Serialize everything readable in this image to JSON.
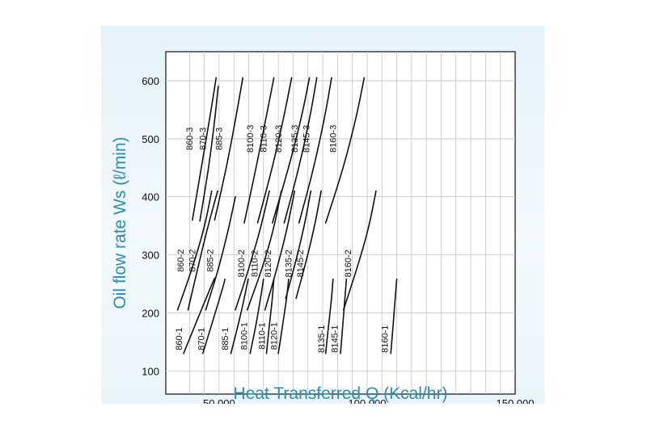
{
  "chart_data": {
    "type": "line",
    "xlabel": "Heat Transferred Q (Kcal/hr)",
    "ylabel": "Oil flow rate Ws (ℓ/min)",
    "xlim": [
      32000,
      150000
    ],
    "ylim": [
      60,
      650
    ],
    "x_ticks": [
      {
        "value": 50000,
        "label": "50,000"
      },
      {
        "value": 100000,
        "label": "100,000"
      },
      {
        "value": 150000,
        "label": "150,000"
      }
    ],
    "y_ticks": [
      100,
      200,
      300,
      400,
      500,
      600
    ],
    "x_gridlines": [
      40000,
      45000,
      50000,
      55000,
      60000,
      65000,
      70000,
      75000,
      80000,
      85000,
      90000,
      95000,
      100000,
      105000,
      110000,
      115000,
      120000,
      125000,
      130000,
      135000,
      140000,
      145000
    ],
    "series": [
      {
        "name": "860-3",
        "points": [
          [
            41000,
            360
          ],
          [
            44000,
            450
          ],
          [
            47000,
            540
          ],
          [
            49000,
            605
          ]
        ]
      },
      {
        "name": "870-3",
        "points": [
          [
            43500,
            358
          ],
          [
            46500,
            450
          ],
          [
            48500,
            530
          ],
          [
            49700,
            590
          ]
        ]
      },
      {
        "name": "885-3",
        "points": [
          [
            48500,
            360
          ],
          [
            52500,
            450
          ],
          [
            55800,
            540
          ],
          [
            58000,
            605
          ]
        ]
      },
      {
        "name": "8100-3",
        "points": [
          [
            58500,
            355
          ],
          [
            62500,
            450
          ],
          [
            66000,
            540
          ],
          [
            68500,
            605
          ]
        ]
      },
      {
        "name": "8110-3",
        "points": [
          [
            63000,
            355
          ],
          [
            68000,
            450
          ],
          [
            72000,
            540
          ],
          [
            74500,
            605
          ]
        ]
      },
      {
        "name": "8120-3",
        "points": [
          [
            68000,
            355
          ],
          [
            73500,
            450
          ],
          [
            78000,
            540
          ],
          [
            80500,
            605
          ]
        ]
      },
      {
        "name": "8135-3",
        "points": [
          [
            72000,
            355
          ],
          [
            77000,
            450
          ],
          [
            80800,
            540
          ],
          [
            83000,
            605
          ]
        ]
      },
      {
        "name": "8145-3",
        "points": [
          [
            77000,
            355
          ],
          [
            82000,
            450
          ],
          [
            85800,
            540
          ],
          [
            88000,
            605
          ]
        ]
      },
      {
        "name": "8160-3",
        "points": [
          [
            86000,
            355
          ],
          [
            92000,
            450
          ],
          [
            96500,
            540
          ],
          [
            99000,
            605
          ]
        ]
      },
      {
        "name": "860-2",
        "points": [
          [
            36000,
            205
          ],
          [
            40500,
            270
          ],
          [
            45000,
            345
          ],
          [
            47500,
            410
          ]
        ]
      },
      {
        "name": "870-2",
        "points": [
          [
            39500,
            205
          ],
          [
            42500,
            270
          ],
          [
            46000,
            345
          ],
          [
            49500,
            410
          ]
        ]
      },
      {
        "name": "885-2",
        "points": [
          [
            45500,
            205
          ],
          [
            49500,
            270
          ],
          [
            53000,
            340
          ],
          [
            55500,
            400
          ]
        ]
      },
      {
        "name": "8100-2",
        "points": [
          [
            55500,
            205
          ],
          [
            60000,
            275
          ],
          [
            64000,
            345
          ],
          [
            67000,
            410
          ]
        ]
      },
      {
        "name": "8110-2",
        "points": [
          [
            59500,
            205
          ],
          [
            64500,
            275
          ],
          [
            68500,
            345
          ],
          [
            71000,
            410
          ]
        ]
      },
      {
        "name": "8120-2",
        "points": [
          [
            65500,
            205
          ],
          [
            69500,
            275
          ],
          [
            73000,
            345
          ],
          [
            75500,
            410
          ]
        ]
      },
      {
        "name": "8135-2",
        "points": [
          [
            72500,
            225
          ],
          [
            76000,
            290
          ],
          [
            79000,
            355
          ],
          [
            81000,
            410
          ]
        ]
      },
      {
        "name": "8145-2",
        "points": [
          [
            76000,
            225
          ],
          [
            79500,
            290
          ],
          [
            82500,
            355
          ],
          [
            84500,
            410
          ]
        ]
      },
      {
        "name": "8160-2",
        "points": [
          [
            92000,
            205
          ],
          [
            96500,
            275
          ],
          [
            100500,
            345
          ],
          [
            103000,
            410
          ]
        ]
      },
      {
        "name": "860-1",
        "points": [
          [
            38000,
            130
          ],
          [
            42000,
            180
          ],
          [
            46000,
            230
          ],
          [
            48500,
            260
          ]
        ]
      },
      {
        "name": "870-1",
        "points": [
          [
            44500,
            130
          ],
          [
            47500,
            180
          ],
          [
            50500,
            230
          ],
          [
            52000,
            258
          ]
        ]
      },
      {
        "name": "885-1",
        "points": [
          [
            54000,
            130
          ],
          [
            56500,
            180
          ],
          [
            58500,
            225
          ],
          [
            59800,
            258
          ]
        ]
      },
      {
        "name": "8100-1",
        "points": [
          [
            60500,
            130
          ],
          [
            62500,
            180
          ],
          [
            64000,
            225
          ],
          [
            65000,
            258
          ]
        ]
      },
      {
        "name": "8110-1",
        "points": [
          [
            66000,
            130
          ],
          [
            67000,
            180
          ],
          [
            68000,
            225
          ],
          [
            68500,
            258
          ]
        ]
      },
      {
        "name": "8120-1",
        "points": [
          [
            70000,
            130
          ],
          [
            71500,
            180
          ],
          [
            72800,
            225
          ],
          [
            73500,
            258
          ]
        ]
      },
      {
        "name": "8135-1",
        "points": [
          [
            86000,
            130
          ],
          [
            87000,
            180
          ],
          [
            88000,
            225
          ],
          [
            88500,
            258
          ]
        ]
      },
      {
        "name": "8145-1",
        "points": [
          [
            91000,
            130
          ],
          [
            91800,
            180
          ],
          [
            92500,
            225
          ],
          [
            93000,
            258
          ]
        ]
      },
      {
        "name": "8160-1",
        "points": [
          [
            108000,
            130
          ],
          [
            108800,
            180
          ],
          [
            109500,
            225
          ],
          [
            110000,
            258
          ]
        ]
      }
    ]
  },
  "labels": [
    {
      "text": "860-3",
      "x": 41000,
      "y": 500
    },
    {
      "text": "870-3",
      "x": 45500,
      "y": 500
    },
    {
      "text": "885-3",
      "x": 51000,
      "y": 500
    },
    {
      "text": "8100-3",
      "x": 61500,
      "y": 500
    },
    {
      "text": "8110-3",
      "x": 66000,
      "y": 500
    },
    {
      "text": "8120-3",
      "x": 71000,
      "y": 500
    },
    {
      "text": "8135-3",
      "x": 76500,
      "y": 500
    },
    {
      "text": "8145-3",
      "x": 80500,
      "y": 500
    },
    {
      "text": "8160-3",
      "x": 89500,
      "y": 500
    },
    {
      "text": "860-2",
      "x": 38000,
      "y": 290
    },
    {
      "text": "870-2",
      "x": 42000,
      "y": 290
    },
    {
      "text": "885-2",
      "x": 48000,
      "y": 290
    },
    {
      "text": "8100-2",
      "x": 58500,
      "y": 285
    },
    {
      "text": "8110-2",
      "x": 63000,
      "y": 285
    },
    {
      "text": "8120-2",
      "x": 67500,
      "y": 285
    },
    {
      "text": "8135-2",
      "x": 74500,
      "y": 285
    },
    {
      "text": "8145-2",
      "x": 78500,
      "y": 285
    },
    {
      "text": "8160-2",
      "x": 94500,
      "y": 285
    },
    {
      "text": "860-1",
      "x": 37500,
      "y": 155
    },
    {
      "text": "870-1",
      "x": 45000,
      "y": 155
    },
    {
      "text": "885-1",
      "x": 53000,
      "y": 155
    },
    {
      "text": "8100-1",
      "x": 59500,
      "y": 160
    },
    {
      "text": "8110-1",
      "x": 65500,
      "y": 160
    },
    {
      "text": "8120-1",
      "x": 69500,
      "y": 160
    },
    {
      "text": "8135-1",
      "x": 85500,
      "y": 155
    },
    {
      "text": "8145-1",
      "x": 90000,
      "y": 155
    },
    {
      "text": "8160-1",
      "x": 107000,
      "y": 155
    }
  ]
}
